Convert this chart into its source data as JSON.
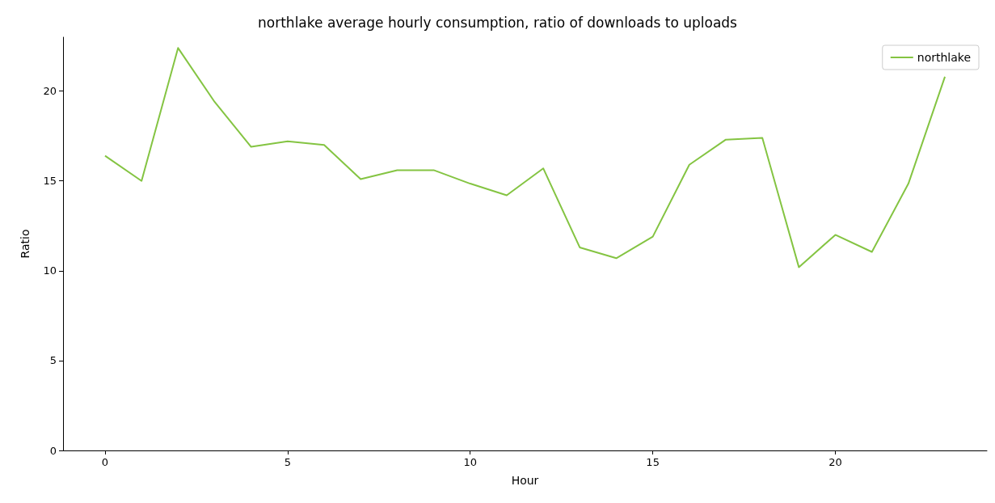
{
  "chart_data": {
    "type": "line",
    "title": "northlake average hourly consumption, ratio of downloads to uploads",
    "xlabel": "Hour",
    "ylabel": "Ratio",
    "x": [
      0,
      1,
      2,
      3,
      4,
      5,
      6,
      7,
      8,
      9,
      10,
      11,
      12,
      13,
      14,
      15,
      16,
      17,
      18,
      19,
      20,
      21,
      22,
      23
    ],
    "series": [
      {
        "name": "northlake",
        "color": "#84c442",
        "values": [
          16.4,
          15.0,
          22.4,
          19.4,
          16.9,
          17.2,
          17.0,
          15.1,
          15.6,
          15.6,
          14.85,
          14.2,
          15.7,
          11.3,
          10.7,
          11.9,
          15.9,
          17.3,
          17.4,
          10.2,
          12.0,
          11.05,
          14.85,
          20.8
        ]
      }
    ],
    "xlim": [
      -1.15,
      24.15
    ],
    "xticks": [
      0,
      5,
      10,
      15,
      20
    ],
    "ylim": [
      0,
      23
    ],
    "yticks": [
      0,
      5,
      10,
      15,
      20
    ],
    "grid": false,
    "legend": "top right",
    "marker": "none",
    "line_style": "solid"
  }
}
